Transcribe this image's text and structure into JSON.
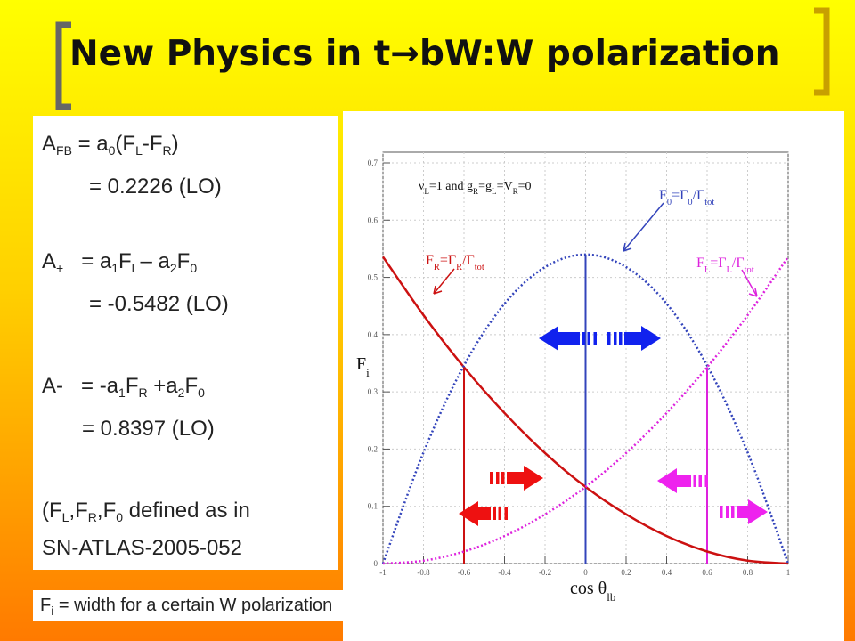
{
  "title": "New Physics in t→bW:W polarization",
  "formulas": {
    "lines": [
      [
        "A",
        {
          "sub": "FB"
        },
        " = a",
        {
          "sub": "0"
        },
        "(F",
        {
          "sub": "L"
        },
        "-F",
        {
          "sub": "R"
        },
        ")"
      ],
      [
        "= 0.2226 (LO)"
      ],
      [
        "A",
        {
          "sub": "+"
        },
        "   = a",
        {
          "sub": "1"
        },
        "F",
        {
          "sub": "l"
        },
        " – a",
        {
          "sub": "2"
        },
        "F",
        {
          "sub": "0"
        }
      ],
      [
        "= -0.5482 (LO)"
      ],
      [
        "A-   = -a",
        {
          "sub": "1"
        },
        "F",
        {
          "sub": "R"
        },
        " +a",
        {
          "sub": "2"
        },
        "F",
        {
          "sub": "0"
        }
      ],
      [
        "= 0.8397 (LO)"
      ],
      [
        "(F",
        {
          "sub": "L"
        },
        ",F",
        {
          "sub": "R"
        },
        ",F",
        {
          "sub": "0"
        },
        " defined as in"
      ],
      [
        "SN-ATLAS-2005-052"
      ]
    ]
  },
  "footnote": [
    "F",
    {
      "sub": "i"
    },
    " = width for a certain W polarization"
  ],
  "chart_data": {
    "type": "line",
    "x": [
      -1,
      -0.8,
      -0.6,
      -0.4,
      -0.2,
      0,
      0.2,
      0.4,
      0.6,
      0.8,
      1
    ],
    "xlim": [
      -1,
      1
    ],
    "xticks": [
      -1,
      -0.8,
      -0.6,
      -0.4,
      -0.2,
      0,
      0.2,
      0.4,
      0.6,
      0.8,
      1
    ],
    "ylim": [
      0,
      0.7
    ],
    "yticks": [
      0,
      0.1,
      0.2,
      0.3,
      0.4,
      0.5,
      0.6,
      0.7
    ],
    "grid": true,
    "ylabel": [
      "F",
      {
        "sub": "i"
      }
    ],
    "xlabel": [
      "cos θ",
      {
        "sub": "lb"
      }
    ],
    "note": [
      "ν",
      {
        "sub": "L"
      },
      "=1 and g",
      {
        "sub": "R"
      },
      "=g",
      {
        "sub": "L"
      },
      "=V",
      {
        "sub": "R"
      },
      "=0"
    ],
    "series": [
      {
        "label": [
          "F",
          {
            "sub": "R"
          },
          "=Γ",
          {
            "sub": "R"
          },
          "/Γ",
          {
            "sub": "tot"
          }
        ],
        "color": "#cc1111",
        "style": "solid",
        "values": [
          0.536,
          0.434,
          0.343,
          0.263,
          0.193,
          0.134,
          0.086,
          0.048,
          0.021,
          0.005,
          0
        ]
      },
      {
        "label": [
          "F",
          {
            "sub": "0"
          },
          "=Γ",
          {
            "sub": "0"
          },
          "/Γ",
          {
            "sub": "tot"
          }
        ],
        "color": "#3344bb",
        "style": "dotted",
        "values": [
          0,
          0.194,
          0.346,
          0.454,
          0.518,
          0.54,
          0.518,
          0.454,
          0.346,
          0.194,
          0
        ]
      },
      {
        "label": [
          "F",
          {
            "sub": "L"
          },
          "=Γ",
          {
            "sub": "L"
          },
          "/Γ",
          {
            "sub": "tot"
          }
        ],
        "color": "#dd22dd",
        "style": "dotted",
        "values": [
          0,
          0.005,
          0.021,
          0.048,
          0.086,
          0.134,
          0.193,
          0.263,
          0.343,
          0.434,
          0.536
        ]
      }
    ]
  }
}
